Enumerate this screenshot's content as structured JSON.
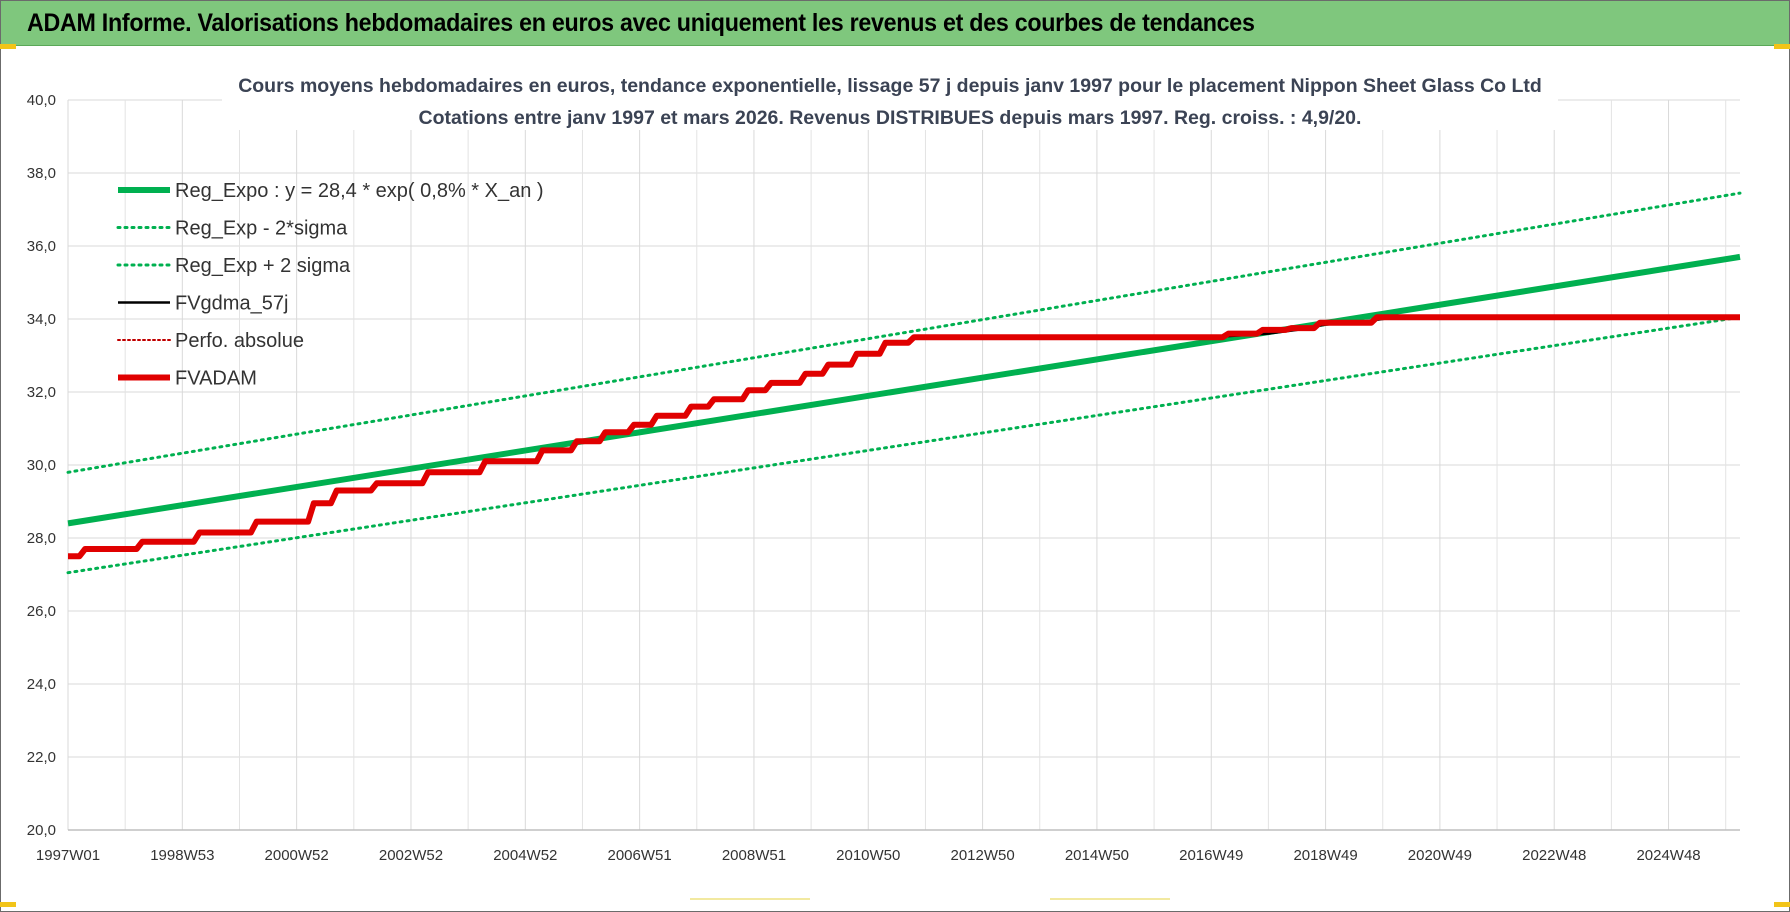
{
  "banner": {
    "title": "ADAM Informe. Valorisations hebdomadaires en euros avec uniquement les revenus et des courbes de tendances",
    "color": "#7fc77d"
  },
  "chart_data": {
    "type": "line",
    "title": "Cours moyens hebdomadaires en euros, tendance exponentielle, lissage 57 j depuis janv 1997  pour le placement Nippon Sheet Glass Co Ltd",
    "subtitle": "Cotations entre janv 1997 et mars 2026. Revenus DISTRIBUES depuis mars 1997.  Reg. croiss. : 4,9/20.",
    "xlabel": "",
    "ylabel": "",
    "ylim": [
      20,
      40
    ],
    "xlim": [
      1997.0,
      2026.25
    ],
    "grid": true,
    "legend_position": "top-left",
    "y_ticks": [
      "20,0",
      "22,0",
      "24,0",
      "26,0",
      "28,0",
      "30,0",
      "32,0",
      "34,0",
      "36,0",
      "38,0",
      "40,0"
    ],
    "x_ticks": [
      {
        "label": "1997W01",
        "x": 1997.0
      },
      {
        "label": "1998W53",
        "x": 1999.0
      },
      {
        "label": "2000W52",
        "x": 2001.0
      },
      {
        "label": "2002W52",
        "x": 2003.0
      },
      {
        "label": "2004W52",
        "x": 2005.0
      },
      {
        "label": "2006W51",
        "x": 2007.0
      },
      {
        "label": "2008W51",
        "x": 2009.0
      },
      {
        "label": "2010W50",
        "x": 2011.0
      },
      {
        "label": "2012W50",
        "x": 2013.0
      },
      {
        "label": "2014W50",
        "x": 2015.0
      },
      {
        "label": "2016W49",
        "x": 2017.0
      },
      {
        "label": "2018W49",
        "x": 2019.0
      },
      {
        "label": "2020W49",
        "x": 2021.0
      },
      {
        "label": "2022W48",
        "x": 2023.0
      },
      {
        "label": "2024W48",
        "x": 2025.0
      }
    ],
    "series": [
      {
        "name": "Reg_Expo : y = 28,4 * exp( 0,8% *  X_an )",
        "color": "#00b050",
        "style": "solid-thick",
        "x": [
          1997.0,
          2026.25
        ],
        "y": [
          28.4,
          35.7
        ]
      },
      {
        "name": "Reg_Exp - 2*sigma",
        "color": "#00b050",
        "style": "dotted",
        "x": [
          1997.0,
          2026.25
        ],
        "y": [
          27.05,
          34.05
        ]
      },
      {
        "name": "Reg_Exp + 2 sigma",
        "color": "#00b050",
        "style": "dotted",
        "x": [
          1997.0,
          2026.25
        ],
        "y": [
          29.8,
          37.45
        ]
      },
      {
        "name": "FVgdma_57j",
        "color": "#000000",
        "style": "solid-thin",
        "x": [
          1997.0,
          1997.2,
          1997.3,
          1998.2,
          1998.3,
          1999.2,
          1999.3,
          2000.2,
          2000.3,
          2001.2,
          2001.3,
          2001.6,
          2001.7,
          2002.3,
          2002.4,
          2003.2,
          2003.3,
          2004.2,
          2004.3,
          2005.2,
          2005.3,
          2005.8,
          2005.9,
          2006.3,
          2006.4,
          2006.8,
          2006.9,
          2007.2,
          2007.3,
          2007.8,
          2007.9,
          2008.2,
          2008.3,
          2008.8,
          2008.9,
          2009.2,
          2009.3,
          2009.8,
          2009.9,
          2010.2,
          2010.3,
          2010.7,
          2010.8,
          2011.2,
          2011.3,
          2011.7,
          2011.8,
          2012.3,
          2017.0,
          2017.5,
          2018.0,
          2018.5,
          2019.0,
          2019.5,
          2020.0,
          2020.2,
          2026.25
        ],
        "y": [
          27.5,
          27.5,
          27.7,
          27.7,
          27.9,
          27.9,
          28.15,
          28.15,
          28.45,
          28.45,
          28.95,
          28.95,
          29.3,
          29.3,
          29.5,
          29.5,
          29.8,
          29.8,
          30.1,
          30.1,
          30.4,
          30.4,
          30.65,
          30.65,
          30.9,
          30.9,
          31.1,
          31.1,
          31.35,
          31.35,
          31.6,
          31.6,
          31.8,
          31.8,
          32.05,
          32.05,
          32.25,
          32.25,
          32.5,
          32.5,
          32.75,
          32.75,
          33.05,
          33.05,
          33.35,
          33.35,
          33.5,
          33.5,
          33.5,
          33.55,
          33.6,
          33.7,
          33.85,
          33.9,
          34.0,
          34.05,
          34.05
        ]
      },
      {
        "name": "Perfo. absolue",
        "color": "#c00000",
        "style": "dotted",
        "x": [],
        "y": []
      },
      {
        "name": "FVADAM",
        "color": "#e00000",
        "style": "solid-thick",
        "x": [
          1997.0,
          1997.2,
          1997.3,
          1998.2,
          1998.3,
          1999.2,
          1999.3,
          2000.2,
          2000.3,
          2001.2,
          2001.3,
          2001.6,
          2001.7,
          2002.3,
          2002.4,
          2003.2,
          2003.3,
          2004.2,
          2004.3,
          2005.2,
          2005.3,
          2005.8,
          2005.9,
          2006.3,
          2006.4,
          2006.8,
          2006.9,
          2007.2,
          2007.3,
          2007.8,
          2007.9,
          2008.2,
          2008.3,
          2008.8,
          2008.9,
          2009.2,
          2009.3,
          2009.8,
          2009.9,
          2010.2,
          2010.3,
          2010.7,
          2010.8,
          2011.2,
          2011.3,
          2011.7,
          2011.8,
          2017.2,
          2017.3,
          2017.8,
          2017.9,
          2018.3,
          2018.4,
          2018.8,
          2018.9,
          2019.8,
          2019.9,
          2026.25
        ],
        "y": [
          27.5,
          27.5,
          27.7,
          27.7,
          27.9,
          27.9,
          28.15,
          28.15,
          28.45,
          28.45,
          28.95,
          28.95,
          29.3,
          29.3,
          29.5,
          29.5,
          29.8,
          29.8,
          30.1,
          30.1,
          30.4,
          30.4,
          30.65,
          30.65,
          30.9,
          30.9,
          31.1,
          31.1,
          31.35,
          31.35,
          31.6,
          31.6,
          31.8,
          31.8,
          32.05,
          32.05,
          32.25,
          32.25,
          32.5,
          32.5,
          32.75,
          32.75,
          33.05,
          33.05,
          33.35,
          33.35,
          33.5,
          33.5,
          33.6,
          33.6,
          33.7,
          33.7,
          33.75,
          33.75,
          33.9,
          33.9,
          34.05,
          34.05
        ]
      }
    ]
  }
}
